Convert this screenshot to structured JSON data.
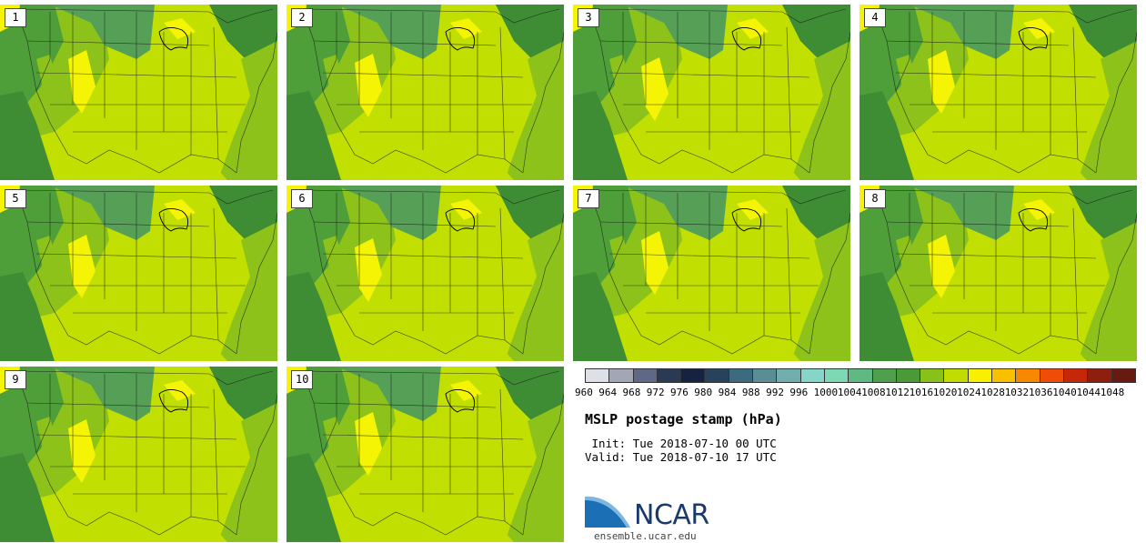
{
  "title": "MSLP postage stamp (hPa)",
  "init": " Init: Tue 2018-07-10 00 UTC",
  "valid": "Valid: Tue 2018-07-10 17 UTC",
  "logo_text": "NCAR",
  "website": "ensemble.ucar.edu",
  "members": [
    "1",
    "2",
    "3",
    "4",
    "5",
    "6",
    "7",
    "8",
    "9",
    "10"
  ],
  "colorbar": {
    "labels": [
      "960",
      "964",
      "968",
      "972",
      "976",
      "980",
      "984",
      "988",
      "992",
      "996",
      "1000",
      "1004",
      "1008",
      "1012",
      "1016",
      "1020",
      "1024",
      "1028",
      "1032",
      "1036",
      "1040",
      "1044",
      "1048"
    ],
    "colors": [
      "#dde0e6",
      "#a3a6b4",
      "#5f6985",
      "#2a3a55",
      "#152340",
      "#27425a",
      "#3d6a7f",
      "#5a8d95",
      "#72aeae",
      "#85d6c8",
      "#7fd8b4",
      "#60b882",
      "#4f9f4e",
      "#4a9a38",
      "#87c11a",
      "#c0dc00",
      "#f8f000",
      "#f8c000",
      "#f88800",
      "#ee4c08",
      "#c42808",
      "#8e1e0e",
      "#661a10"
    ]
  },
  "palette": {
    "ocean": "#4e9e3a",
    "deep": "#3e8c34",
    "land": "#c2df02",
    "mid": "#8cc21a",
    "high": "#f4f404",
    "low": "#55a056",
    "state_line": "#1a1a1a"
  }
}
